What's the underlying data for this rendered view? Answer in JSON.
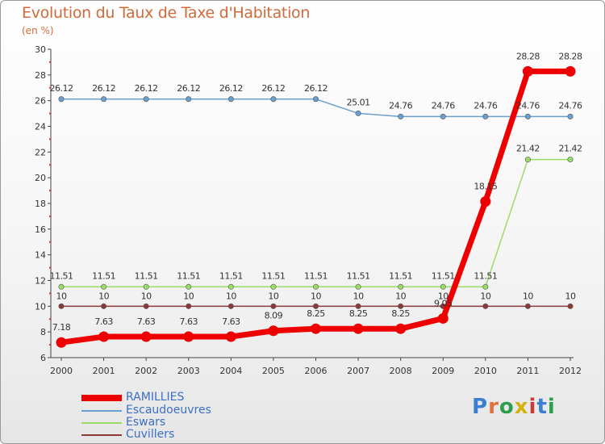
{
  "title": "Evolution du Taux de Taxe d'Habitation",
  "subtitle": "(en %)",
  "logo": {
    "text": "Proxiti",
    "colors": [
      "#3a7fd0",
      "#e2703a",
      "#2e9e4b",
      "#d4b20f",
      "#c93a3a",
      "#3a7fd0",
      "#2e9e4b"
    ]
  },
  "chart_data": {
    "type": "line",
    "title": "Evolution du Taux de Taxe d'Habitation",
    "subtitle": "(en %)",
    "x": [
      "2000",
      "2001",
      "2002",
      "2003",
      "2004",
      "2005",
      "2006",
      "2007",
      "2008",
      "2009",
      "2010",
      "2011",
      "2012"
    ],
    "yticks": [
      "6",
      "8",
      "10",
      "12",
      "14",
      "16",
      "18",
      "20",
      "22",
      "24",
      "26",
      "28",
      "30"
    ],
    "ylim": [
      6,
      30
    ],
    "grid": false,
    "legend_position": "bottom-left",
    "series": [
      {
        "name": "RAMILLIES",
        "color": "#ee0000",
        "values": [
          7.18,
          7.63,
          7.63,
          7.63,
          7.63,
          8.09,
          8.25,
          8.25,
          8.25,
          9.05,
          18.15,
          28.28,
          28.28
        ],
        "labels": [
          "7.18",
          "7.63",
          "7.63",
          "7.63",
          "7.63",
          "8.09",
          "8.25",
          "8.25",
          "8.25",
          "9.05",
          "18.15",
          "28.28",
          "28.28"
        ]
      },
      {
        "name": "Escaudoeuvres",
        "color": "#6a9fd0",
        "values": [
          26.12,
          26.12,
          26.12,
          26.12,
          26.12,
          26.12,
          26.12,
          25.01,
          24.76,
          24.76,
          24.76,
          24.76,
          24.76
        ],
        "labels": [
          "26.12",
          "26.12",
          "26.12",
          "26.12",
          "26.12",
          "26.12",
          "26.12",
          "25.01",
          "24.76",
          "24.76",
          "24.76",
          "24.76",
          "24.76"
        ]
      },
      {
        "name": "Eswars",
        "color": "#99dd66",
        "values": [
          11.51,
          11.51,
          11.51,
          11.51,
          11.51,
          11.51,
          11.51,
          11.51,
          11.51,
          11.51,
          11.51,
          21.42,
          21.42
        ],
        "labels": [
          "11.51",
          "11.51",
          "11.51",
          "11.51",
          "11.51",
          "11.51",
          "11.51",
          "11.51",
          "11.51",
          "11.51",
          "11.51",
          "21.42",
          "21.42"
        ]
      },
      {
        "name": "Cuvillers",
        "color": "#8b3a3a",
        "values": [
          10,
          10,
          10,
          10,
          10,
          10,
          10,
          10,
          10,
          10,
          10,
          10,
          10
        ],
        "labels": [
          "10",
          "10",
          "10",
          "10",
          "10",
          "10",
          "10",
          "10",
          "10",
          "10",
          "10",
          "10",
          "10"
        ]
      }
    ]
  }
}
